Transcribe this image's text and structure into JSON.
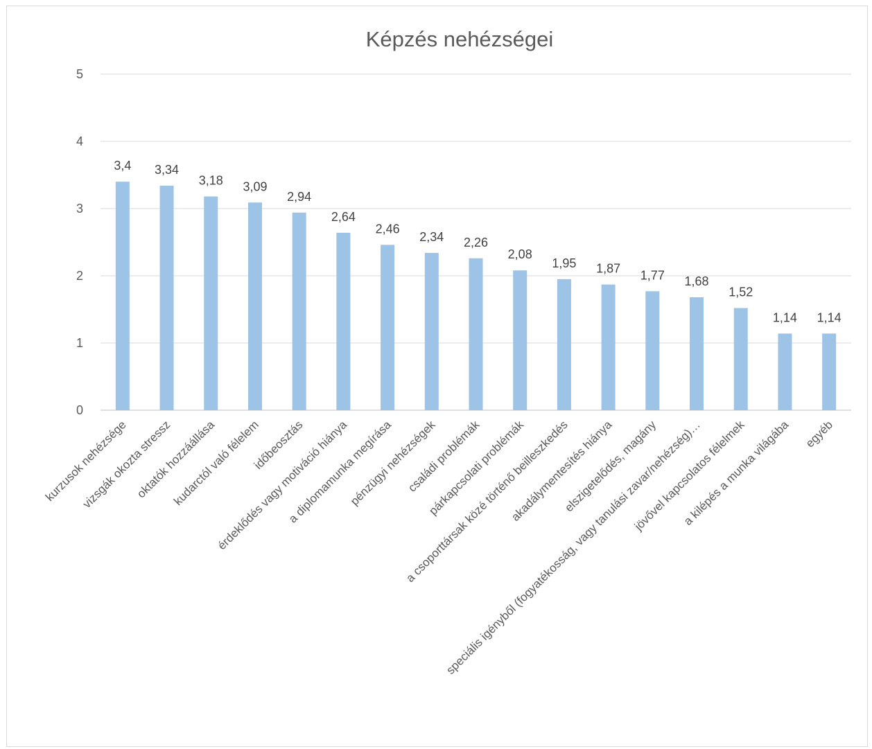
{
  "chart_data": {
    "type": "bar",
    "title": "Képzés nehézségei",
    "xlabel": "",
    "ylabel": "",
    "ylim": [
      0,
      5
    ],
    "yticks": [
      "0",
      "1",
      "2",
      "3",
      "4",
      "5"
    ],
    "grid": true,
    "legend": "none",
    "bar_color": "#9dc3e6",
    "categories": [
      "kurzusok nehézsége",
      "vizsgák okozta stressz",
      "oktatók hozzáállása",
      "kudarctól való félelem",
      "időbeosztás",
      "érdeklődés vagy motiváció hiánya",
      "a diplomamunka megírása",
      "pénzügyi nehézségek",
      "családi problémák",
      "párkapcsolati problémák",
      "a csoporttársak közé történő beilleszkedés",
      "akadálymentesítés hiánya",
      "elszigetelődés, magány",
      "speciális igényből (fogyatékosság, vagy tanulási zavar/nehézség)…",
      "jövővel kapcsolatos félelmek",
      "a kilépés a munka világába",
      "egyéb"
    ],
    "values": [
      3.4,
      3.34,
      3.18,
      3.09,
      2.94,
      2.64,
      2.46,
      2.34,
      2.26,
      2.08,
      1.95,
      1.87,
      1.77,
      1.68,
      1.52,
      1.14,
      1.14
    ],
    "data_labels": [
      "3,4",
      "3,34",
      "3,18",
      "3,09",
      "2,94",
      "2,64",
      "2,46",
      "2,34",
      "2,26",
      "2,08",
      "1,95",
      "1,87",
      "1,77",
      "1,68",
      "1,52",
      "1,14",
      "1,14"
    ]
  }
}
